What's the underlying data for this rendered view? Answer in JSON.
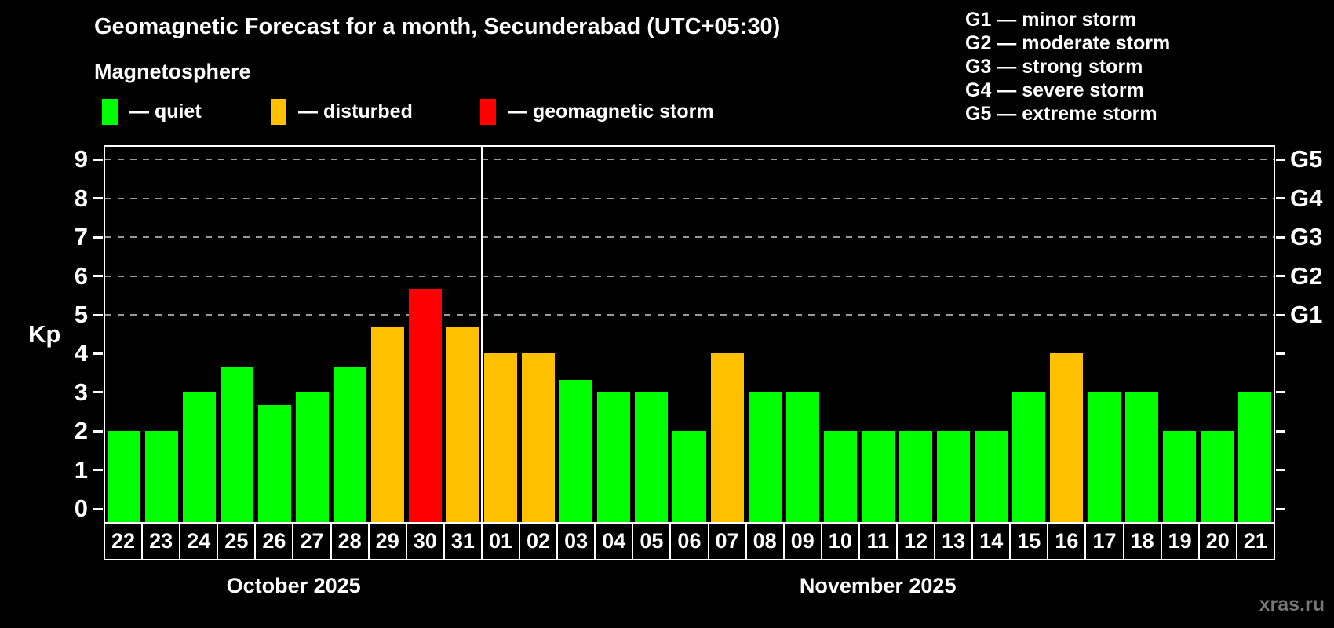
{
  "title": "Geomagnetic Forecast for a month, Secunderabad (UTC+05:30)",
  "subtitle": "Magnetosphere",
  "watermark": "xras.ru",
  "axis_label": "Kp",
  "g_legend": [
    "G1 — minor storm",
    "G2 — moderate storm",
    "G3 — strong storm",
    "G4 — severe storm",
    "G5 — extreme storm"
  ],
  "series_legend": [
    {
      "label": "— quiet",
      "status": "quiet"
    },
    {
      "label": "— disturbed",
      "status": "disturbed"
    },
    {
      "label": "— geomagnetic storm",
      "status": "storm"
    }
  ],
  "chart_data": {
    "type": "bar",
    "title": "Geomagnetic Forecast for a month, Secunderabad (UTC+05:30)",
    "ylabel": "Kp",
    "ylim": [
      0,
      9
    ],
    "y_ticks": [
      0,
      1,
      2,
      3,
      4,
      5,
      6,
      7,
      8,
      9
    ],
    "grid": "dashed horizontal lines at Kp 5-9",
    "gridlines_kp": [
      5,
      6,
      7,
      8,
      9
    ],
    "g_levels": [
      {
        "kp": 9,
        "label": "G5"
      },
      {
        "kp": 8,
        "label": "G4"
      },
      {
        "kp": 7,
        "label": "G3"
      },
      {
        "kp": 6,
        "label": "G2"
      },
      {
        "kp": 5,
        "label": "G1"
      }
    ],
    "months": [
      {
        "label": "October 2025",
        "days": 10
      },
      {
        "label": "November 2025",
        "days": 21
      }
    ],
    "categories": [
      "22",
      "23",
      "24",
      "25",
      "26",
      "27",
      "28",
      "29",
      "30",
      "31",
      "01",
      "02",
      "03",
      "04",
      "05",
      "06",
      "07",
      "08",
      "09",
      "10",
      "11",
      "12",
      "13",
      "14",
      "15",
      "16",
      "17",
      "18",
      "19",
      "20",
      "21"
    ],
    "values": [
      2,
      2,
      3,
      3.67,
      2.67,
      3,
      3.67,
      4.67,
      5.67,
      4.67,
      4,
      4,
      3.33,
      3,
      3,
      2,
      4,
      3,
      3,
      2,
      2,
      2,
      2,
      2,
      3,
      4,
      3,
      3,
      2,
      2,
      3
    ],
    "statuses": [
      "quiet",
      "quiet",
      "quiet",
      "quiet",
      "quiet",
      "quiet",
      "quiet",
      "disturbed",
      "storm",
      "disturbed",
      "disturbed",
      "disturbed",
      "quiet",
      "quiet",
      "quiet",
      "quiet",
      "disturbed",
      "quiet",
      "quiet",
      "quiet",
      "quiet",
      "quiet",
      "quiet",
      "quiet",
      "quiet",
      "disturbed",
      "quiet",
      "quiet",
      "quiet",
      "quiet",
      "quiet"
    ],
    "colors": {
      "quiet": "#00ff00",
      "disturbed": "#ffc000",
      "storm": "#ff0000",
      "frame": "#ffffff",
      "gridline": "#999999",
      "background": "#000000",
      "watermark": "#777777"
    }
  }
}
